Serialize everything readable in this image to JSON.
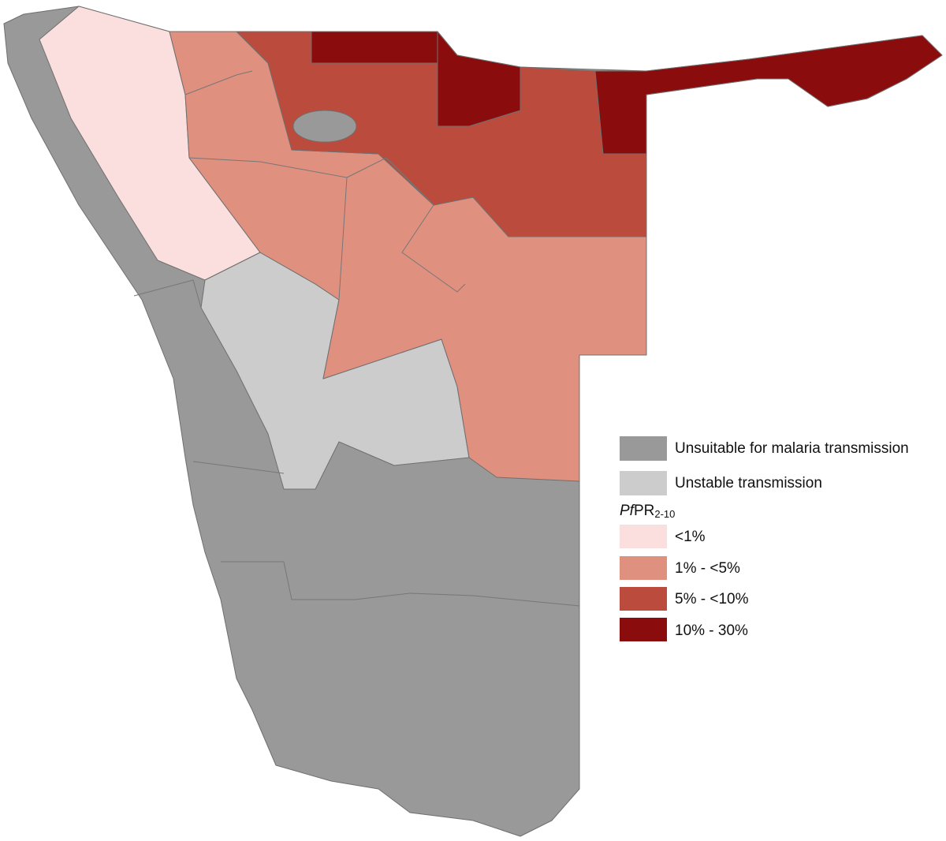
{
  "legend": {
    "items": [
      {
        "label": "Unsuitable for malaria transmission",
        "color": "#999999"
      },
      {
        "label": "Unstable transmission",
        "color": "#cccccc"
      }
    ],
    "title": {
      "prefix": "Pf",
      "main": "PR",
      "subscript": "2-10"
    },
    "classes": [
      {
        "label": "<1%",
        "color": "#fbdfdf"
      },
      {
        "label": "1% - <5%",
        "color": "#e0907f"
      },
      {
        "label": "5% - <10%",
        "color": "#bb4b3c"
      },
      {
        "label": "10% - 30%",
        "color": "#8b0c0c"
      }
    ]
  }
}
